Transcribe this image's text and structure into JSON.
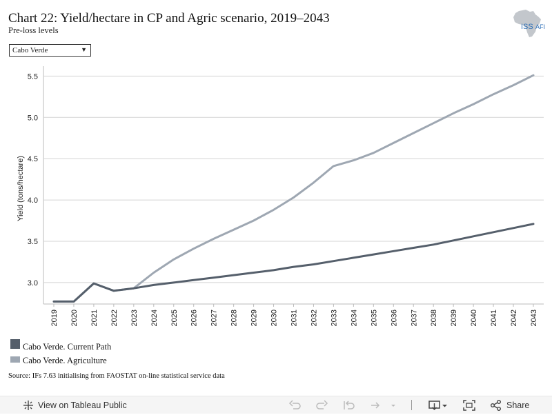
{
  "header": {
    "title": "Chart 22: Yield/hectare in CP and Agric scenario, 2019–2043",
    "subtitle": "Pre-loss levels",
    "logo_text": "ISS",
    "logo_suffix": "AFI"
  },
  "filter": {
    "selected": "Cabo Verde"
  },
  "chart_data": {
    "type": "line",
    "ylabel": "Yield (tons/hectare)",
    "xlabel": "",
    "ylim": [
      2.74,
      5.62
    ],
    "yticks": [
      3.0,
      3.5,
      4.0,
      4.5,
      5.0,
      5.5
    ],
    "ytick_labels": [
      "3.0",
      "3.5",
      "4.0",
      "4.5",
      "5.0",
      "5.5"
    ],
    "grid": true,
    "x": [
      "2019",
      "2020",
      "2021",
      "2022",
      "2023",
      "2024",
      "2025",
      "2026",
      "2027",
      "2028",
      "2029",
      "2030",
      "2031",
      "2032",
      "2033",
      "2034",
      "2035",
      "2036",
      "2037",
      "2038",
      "2039",
      "2040",
      "2041",
      "2042",
      "2043"
    ],
    "series": [
      {
        "name": "Cabo Verde. Current Path",
        "color": "#555f6b",
        "values": [
          2.77,
          2.77,
          2.99,
          2.9,
          2.93,
          2.97,
          3.0,
          3.03,
          3.06,
          3.09,
          3.12,
          3.15,
          3.19,
          3.22,
          3.26,
          3.3,
          3.34,
          3.38,
          3.42,
          3.46,
          3.51,
          3.56,
          3.61,
          3.66,
          3.71
        ]
      },
      {
        "name": "Cabo Verde. Agriculture",
        "color": "#9ea7b2",
        "values": [
          2.77,
          2.77,
          2.99,
          2.9,
          2.93,
          3.12,
          3.28,
          3.41,
          3.53,
          3.64,
          3.75,
          3.88,
          4.03,
          4.21,
          4.41,
          4.48,
          4.57,
          4.69,
          4.81,
          4.93,
          5.05,
          5.16,
          5.28,
          5.39,
          5.51
        ]
      }
    ],
    "legend_position": "bottom-left"
  },
  "source": "Source: IFs 7.63 initialising from FAOSTAT on-line statistical service data",
  "toolbar": {
    "view_label": "View on Tableau Public",
    "share_label": "Share"
  }
}
